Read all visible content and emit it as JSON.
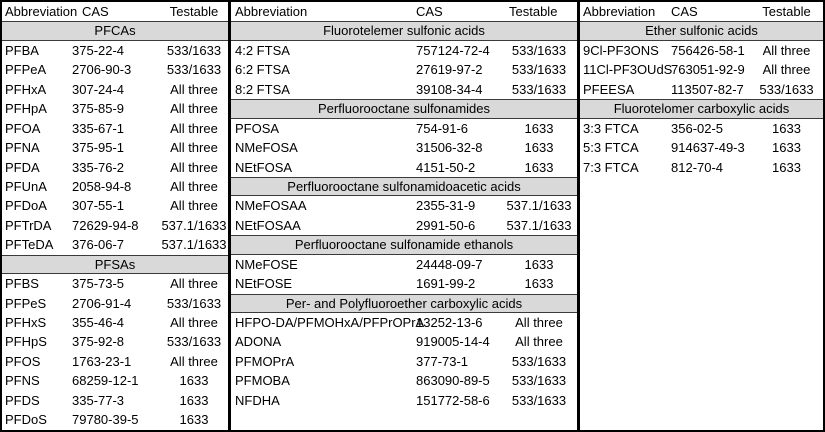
{
  "colors": {
    "section_band_bg": "#d9d9d9",
    "outer_border": "#000000",
    "thin_border": "#3a3a3a",
    "text": "#000000",
    "background": "#ffffff"
  },
  "columns": [
    "Abbreviation",
    "CAS",
    "Testable"
  ],
  "panels": [
    {
      "rows": [
        {
          "type": "header"
        },
        {
          "type": "section",
          "label": "PFCAs"
        },
        {
          "type": "data",
          "abbr": "PFBA",
          "cas": "375-22-4",
          "testable": "533/1633"
        },
        {
          "type": "data",
          "abbr": "PFPeA",
          "cas": "2706-90-3",
          "testable": "533/1633"
        },
        {
          "type": "data",
          "abbr": "PFHxA",
          "cas": "307-24-4",
          "testable": "All three"
        },
        {
          "type": "data",
          "abbr": "PFHpA",
          "cas": "375-85-9",
          "testable": "All three"
        },
        {
          "type": "data",
          "abbr": "PFOA",
          "cas": "335-67-1",
          "testable": "All three"
        },
        {
          "type": "data",
          "abbr": "PFNA",
          "cas": "375-95-1",
          "testable": "All three"
        },
        {
          "type": "data",
          "abbr": "PFDA",
          "cas": "335-76-2",
          "testable": "All three"
        },
        {
          "type": "data",
          "abbr": "PFUnA",
          "cas": "2058-94-8",
          "testable": "All three"
        },
        {
          "type": "data",
          "abbr": "PFDoA",
          "cas": "307-55-1",
          "testable": "All three"
        },
        {
          "type": "data",
          "abbr": "PFTrDA",
          "cas": "72629-94-8",
          "testable": "537.1/1633"
        },
        {
          "type": "data",
          "abbr": "PFTeDA",
          "cas": "376-06-7",
          "testable": "537.1/1633"
        },
        {
          "type": "section",
          "label": "PFSAs"
        },
        {
          "type": "data",
          "abbr": "PFBS",
          "cas": "375-73-5",
          "testable": "All three"
        },
        {
          "type": "data",
          "abbr": "PFPeS",
          "cas": "2706-91-4",
          "testable": "533/1633"
        },
        {
          "type": "data",
          "abbr": "PFHxS",
          "cas": "355-46-4",
          "testable": "All three"
        },
        {
          "type": "data",
          "abbr": "PFHpS",
          "cas": "375-92-8",
          "testable": "533/1633"
        },
        {
          "type": "data",
          "abbr": "PFOS",
          "cas": "1763-23-1",
          "testable": "All three"
        },
        {
          "type": "data",
          "abbr": "PFNS",
          "cas": "68259-12-1",
          "testable": "1633"
        },
        {
          "type": "data",
          "abbr": "PFDS",
          "cas": "335-77-3",
          "testable": "1633"
        },
        {
          "type": "data",
          "abbr": "PFDoS",
          "cas": "79780-39-5",
          "testable": "1633"
        }
      ]
    },
    {
      "rows": [
        {
          "type": "header"
        },
        {
          "type": "section",
          "label": "Fluorotelemer sulfonic acids"
        },
        {
          "type": "data",
          "abbr": "4:2 FTSA",
          "cas": "757124-72-4",
          "testable": "533/1633"
        },
        {
          "type": "data",
          "abbr": "6:2 FTSA",
          "cas": "27619-97-2",
          "testable": "533/1633"
        },
        {
          "type": "data",
          "abbr": "8:2 FTSA",
          "cas": "39108-34-4",
          "testable": "533/1633"
        },
        {
          "type": "section",
          "label": "Perfluorooctane sulfonamides"
        },
        {
          "type": "data",
          "abbr": "PFOSA",
          "cas": "754-91-6",
          "testable": "1633"
        },
        {
          "type": "data",
          "abbr": "NMeFOSA",
          "cas": "31506-32-8",
          "testable": "1633"
        },
        {
          "type": "data",
          "abbr": "NEtFOSA",
          "cas": "4151-50-2",
          "testable": "1633"
        },
        {
          "type": "section",
          "label": "Perfluorooctane sulfonamidoacetic acids"
        },
        {
          "type": "data",
          "abbr": "NMeFOSAA",
          "cas": "2355-31-9",
          "testable": "537.1/1633"
        },
        {
          "type": "data",
          "abbr": "NEtFOSAA",
          "cas": "2991-50-6",
          "testable": "537.1/1633"
        },
        {
          "type": "section",
          "label": "Perfluorooctane sulfonamide ethanols"
        },
        {
          "type": "data",
          "abbr": "NMeFOSE",
          "cas": "24448-09-7",
          "testable": "1633"
        },
        {
          "type": "data",
          "abbr": "NEtFOSE",
          "cas": "1691-99-2",
          "testable": "1633"
        },
        {
          "type": "section",
          "label": "Per- and Polyfluoroether carboxylic acids"
        },
        {
          "type": "data",
          "abbr": "HFPO-DA/PFMOHxA/PFPrOPrA",
          "cas": "13252-13-6",
          "testable": "All three"
        },
        {
          "type": "data",
          "abbr": "ADONA",
          "cas": "919005-14-4",
          "testable": "All three"
        },
        {
          "type": "data",
          "abbr": "PFMOPrA",
          "cas": "377-73-1",
          "testable": "533/1633"
        },
        {
          "type": "data",
          "abbr": "PFMOBA",
          "cas": "863090-89-5",
          "testable": "533/1633"
        },
        {
          "type": "data",
          "abbr": "NFDHA",
          "cas": "151772-58-6",
          "testable": "533/1633"
        }
      ]
    },
    {
      "rows": [
        {
          "type": "header"
        },
        {
          "type": "section",
          "label": "Ether sulfonic acids"
        },
        {
          "type": "data",
          "abbr": "9Cl-PF3ONS",
          "cas": "756426-58-1",
          "testable": "All three"
        },
        {
          "type": "data",
          "abbr": "11Cl-PF3OUdS",
          "cas": "763051-92-9",
          "testable": "All three"
        },
        {
          "type": "data",
          "abbr": "PFEESA",
          "cas": "113507-82-7",
          "testable": "533/1633"
        },
        {
          "type": "section",
          "label": "Fluorotelomer carboxylic acids"
        },
        {
          "type": "data",
          "abbr": "3:3 FTCA",
          "cas": "356-02-5",
          "testable": "1633"
        },
        {
          "type": "data",
          "abbr": "5:3 FTCA",
          "cas": "914637-49-3",
          "testable": "1633"
        },
        {
          "type": "data",
          "abbr": "7:3 FTCA",
          "cas": "812-70-4",
          "testable": "1633"
        }
      ]
    }
  ]
}
